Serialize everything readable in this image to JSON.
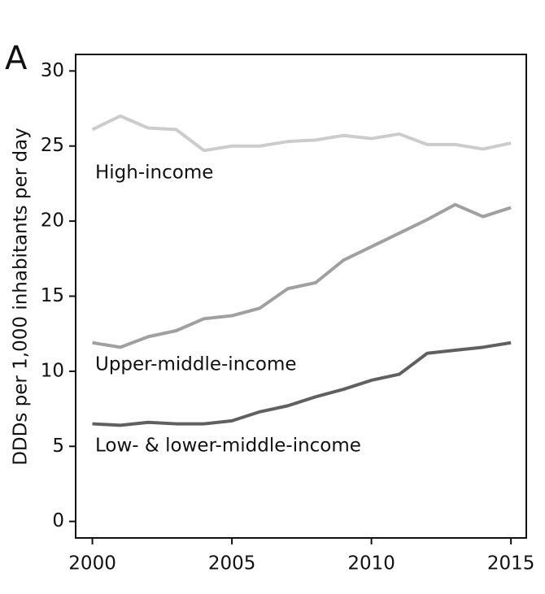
{
  "chart_data": {
    "type": "line",
    "panel_label": "A",
    "ylabel": "DDDs per 1,000 inhabitants per day",
    "x": [
      2000,
      2001,
      2002,
      2003,
      2004,
      2005,
      2006,
      2007,
      2008,
      2009,
      2010,
      2011,
      2012,
      2013,
      2014,
      2015
    ],
    "series": [
      {
        "name": "High-income",
        "color": "#cccccc",
        "values": [
          26.1,
          27.0,
          26.2,
          26.1,
          24.7,
          25.0,
          25.0,
          25.3,
          25.4,
          25.7,
          25.5,
          25.8,
          25.1,
          25.1,
          24.8,
          25.2
        ]
      },
      {
        "name": "Upper-middle-income",
        "color": "#a0a0a0",
        "values": [
          11.9,
          11.6,
          12.3,
          12.7,
          13.5,
          13.7,
          14.2,
          15.5,
          15.9,
          17.4,
          18.3,
          19.2,
          20.1,
          21.1,
          20.3,
          20.9
        ]
      },
      {
        "name": "Low- & lower-middle-income",
        "color": "#606060",
        "values": [
          6.5,
          6.4,
          6.6,
          6.5,
          6.5,
          6.7,
          7.3,
          7.7,
          8.3,
          8.8,
          9.4,
          9.8,
          11.2,
          11.4,
          11.6,
          11.9
        ]
      }
    ],
    "xlim": [
      1999.4,
      2015.55
    ],
    "xticks": [
      2000,
      2005,
      2010,
      2015
    ],
    "ylim": [
      -1.1,
      31.1
    ],
    "yticks": [
      0,
      5,
      10,
      15,
      20,
      25,
      30
    ]
  }
}
